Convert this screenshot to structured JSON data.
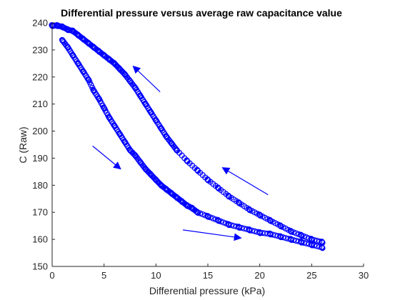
{
  "chart_data": {
    "type": "scatter",
    "title": "Differential pressure versus average raw capacitance value",
    "xlabel": "Differential pressure (kPa)",
    "ylabel": "C (Raw)",
    "xlim": [
      0,
      30
    ],
    "ylim": [
      150,
      240
    ],
    "xticks": [
      0,
      5,
      10,
      15,
      20,
      25,
      30
    ],
    "yticks": [
      150,
      160,
      170,
      180,
      190,
      200,
      210,
      220,
      230,
      240
    ],
    "grid": false,
    "marker": "open-circle",
    "color": "#0000ff",
    "series": [
      {
        "points": [
          [
            1.0,
            233.5
          ],
          [
            1.5,
            231
          ],
          [
            2.0,
            228
          ],
          [
            2.5,
            225
          ],
          [
            3.0,
            222
          ],
          [
            3.5,
            219
          ],
          [
            4.0,
            215
          ],
          [
            4.5,
            212
          ],
          [
            5.0,
            208.5
          ],
          [
            5.5,
            205
          ],
          [
            6.0,
            202
          ],
          [
            6.5,
            199
          ],
          [
            7.0,
            196
          ],
          [
            7.5,
            193
          ],
          [
            8.0,
            191
          ],
          [
            8.5,
            188.5
          ],
          [
            9.0,
            186
          ],
          [
            9.5,
            184
          ],
          [
            10.0,
            182
          ],
          [
            10.5,
            180
          ],
          [
            11.0,
            178.5
          ],
          [
            11.5,
            177
          ],
          [
            12.0,
            175.5
          ],
          [
            12.5,
            174
          ],
          [
            13.0,
            172.5
          ],
          [
            13.5,
            171.5
          ],
          [
            14.0,
            170
          ],
          [
            15.0,
            168.5
          ],
          [
            16.0,
            167
          ],
          [
            17.0,
            165.5
          ],
          [
            18.0,
            164.5
          ],
          [
            19.0,
            163.5
          ],
          [
            20.0,
            162.5
          ],
          [
            21.0,
            162
          ],
          [
            22.0,
            161
          ],
          [
            23.0,
            160
          ],
          [
            24.0,
            159
          ],
          [
            25.0,
            158
          ],
          [
            26.0,
            157
          ]
        ]
      },
      {
        "points": [
          [
            26.0,
            159
          ],
          [
            25.0,
            160
          ],
          [
            24.0,
            161.5
          ],
          [
            23.0,
            163
          ],
          [
            22.0,
            165
          ],
          [
            21.0,
            167
          ],
          [
            20.0,
            169
          ],
          [
            19.0,
            171
          ],
          [
            18.0,
            173.5
          ],
          [
            17.0,
            176
          ],
          [
            16.0,
            179
          ],
          [
            15.0,
            182
          ],
          [
            14.0,
            185.5
          ],
          [
            13.0,
            189
          ],
          [
            12.0,
            193
          ],
          [
            11.5,
            195.5
          ],
          [
            11.0,
            198
          ],
          [
            10.5,
            201
          ],
          [
            10.0,
            204
          ],
          [
            9.5,
            207
          ],
          [
            9.0,
            210
          ],
          [
            8.5,
            213
          ],
          [
            8.0,
            216
          ],
          [
            7.5,
            218.5
          ],
          [
            7.0,
            221
          ],
          [
            6.5,
            223
          ],
          [
            6.0,
            225
          ],
          [
            5.5,
            226.5
          ],
          [
            5.0,
            228
          ],
          [
            4.5,
            229.5
          ],
          [
            4.0,
            231
          ],
          [
            3.5,
            232.5
          ],
          [
            3.0,
            234
          ],
          [
            2.5,
            235.5
          ],
          [
            2.0,
            237
          ],
          [
            1.5,
            237.5
          ],
          [
            1.0,
            238.5
          ],
          [
            0.5,
            239
          ],
          [
            0.0,
            239
          ]
        ]
      }
    ],
    "arrows": [
      {
        "from": [
          10.4,
          214.5
        ],
        "to": [
          7.8,
          224
        ]
      },
      {
        "from": [
          20.8,
          176.5
        ],
        "to": [
          16.4,
          186.5
        ]
      },
      {
        "from": [
          3.9,
          194.5
        ],
        "to": [
          6.6,
          186
        ]
      },
      {
        "from": [
          12.6,
          163.5
        ],
        "to": [
          18.2,
          160.5
        ]
      }
    ]
  }
}
